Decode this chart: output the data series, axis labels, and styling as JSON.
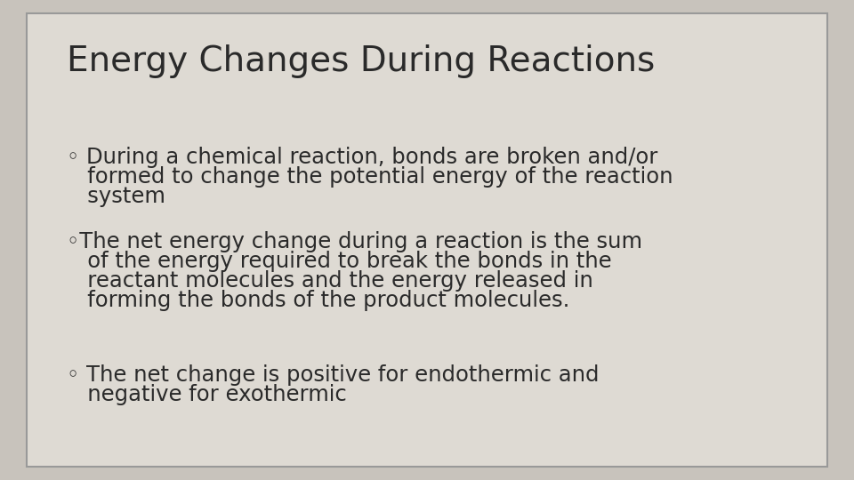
{
  "title": "Energy Changes During Reactions",
  "title_fontsize": 28,
  "title_color": "#2a2a2a",
  "background_color": "#dedad3",
  "outer_bg_color": "#c8c3bc",
  "border_color": "#999999",
  "bullet_color": "#2a2a2a",
  "bullet_fontsize": 17.5,
  "bullet1_line1": "◦ During a chemical reaction, bonds are broken and/or",
  "bullet1_line2": "   formed to change the potential energy of the reaction",
  "bullet1_line3": "   system",
  "bullet2_line1": "◦The net energy change during a reaction is the sum",
  "bullet2_line2": "   of the energy required to break the bonds in the",
  "bullet2_line3": "   reactant molecules and the energy released in",
  "bullet2_line4": "   forming the bonds of the product molecules.",
  "bullet3_line1": "◦ The net change is positive for endothermic and",
  "bullet3_line2": "   negative for exothermic",
  "figsize": [
    9.6,
    5.4
  ],
  "dpi": 100
}
